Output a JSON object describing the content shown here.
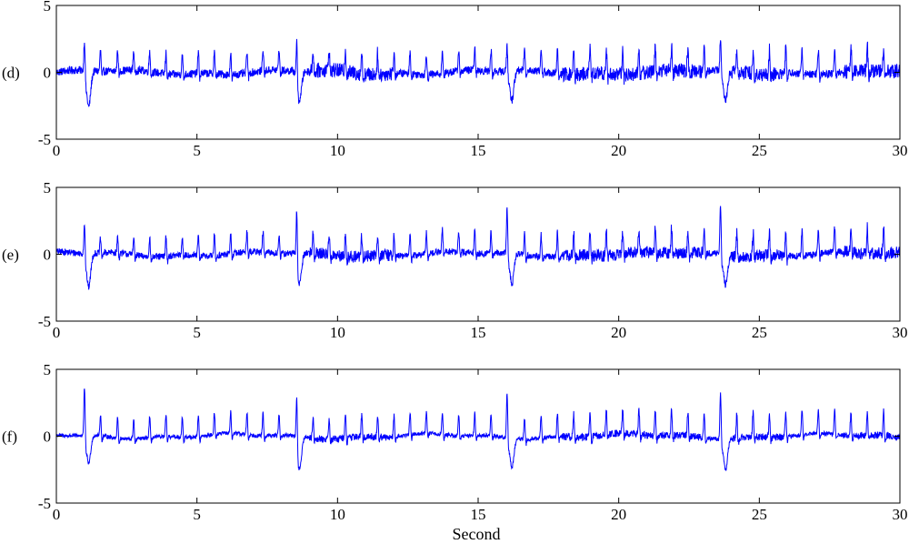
{
  "figure": {
    "xlabel": "Second",
    "line_color": "#0000ff"
  },
  "chart_data": [
    {
      "type": "line",
      "panel_label": "(d)",
      "xlim": [
        0,
        30
      ],
      "ylim": [
        -5,
        5
      ],
      "xticks": [
        0,
        5,
        10,
        15,
        20,
        25,
        30
      ],
      "yticks": [
        -5,
        0,
        5
      ],
      "xlabel": "",
      "beat_times": [
        1.0,
        1.57,
        2.18,
        2.75,
        3.32,
        3.9,
        4.48,
        5.05,
        5.62,
        6.2,
        6.78,
        7.35,
        7.92,
        8.55,
        9.13,
        9.7,
        10.28,
        10.86,
        11.43,
        12.01,
        12.58,
        13.16,
        13.73,
        14.31,
        14.88,
        15.46,
        16.03,
        16.65,
        17.24,
        17.82,
        18.4,
        18.98,
        19.56,
        20.14,
        20.72,
        21.3,
        21.88,
        22.46,
        23.04,
        23.62,
        24.2,
        24.78,
        25.36,
        25.94,
        26.52,
        27.1,
        27.68,
        28.26,
        28.84,
        29.42
      ],
      "spike_heights": [
        2.5,
        1.6,
        1.6,
        1.5,
        1.6,
        1.6,
        1.5,
        1.6,
        1.7,
        1.6,
        1.7,
        1.7,
        1.6,
        2.9,
        1.6,
        1.6,
        1.7,
        1.6,
        1.7,
        1.6,
        1.7,
        1.6,
        1.7,
        1.6,
        1.7,
        1.6,
        2.0,
        1.6,
        1.7,
        1.8,
        1.7,
        1.9,
        1.8,
        1.8,
        1.9,
        1.8,
        1.9,
        1.8,
        1.9,
        2.5,
        1.8,
        1.9,
        1.8,
        1.9,
        1.9,
        1.8,
        1.9,
        1.9,
        1.9,
        1.8
      ],
      "artifact_events": [
        {
          "t": 1.15,
          "depth": -2.7
        },
        {
          "t": 8.65,
          "depth": -2.1
        },
        {
          "t": 16.2,
          "depth": -2.2
        },
        {
          "t": 23.8,
          "depth": -2.3
        }
      ],
      "noise_level": 0.3
    },
    {
      "type": "line",
      "panel_label": "(e)",
      "xlim": [
        0,
        30
      ],
      "ylim": [
        -5,
        5
      ],
      "xticks": [
        0,
        5,
        10,
        15,
        20,
        25,
        30
      ],
      "yticks": [
        -5,
        0,
        5
      ],
      "xlabel": "",
      "beat_times": [
        1.0,
        1.57,
        2.18,
        2.75,
        3.32,
        3.9,
        4.48,
        5.05,
        5.62,
        6.2,
        6.78,
        7.35,
        7.92,
        8.55,
        9.13,
        9.7,
        10.28,
        10.86,
        11.43,
        12.01,
        12.58,
        13.16,
        13.73,
        14.31,
        14.88,
        15.46,
        16.03,
        16.65,
        17.24,
        17.82,
        18.4,
        18.98,
        19.56,
        20.14,
        20.72,
        21.3,
        21.88,
        22.46,
        23.04,
        23.62,
        24.2,
        24.78,
        25.36,
        25.94,
        26.52,
        27.1,
        27.68,
        28.26,
        28.84,
        29.42
      ],
      "spike_heights": [
        2.5,
        1.1,
        1.2,
        1.4,
        1.5,
        1.5,
        1.4,
        1.5,
        1.6,
        1.5,
        1.6,
        1.6,
        1.5,
        3.9,
        1.6,
        1.6,
        1.7,
        1.6,
        1.7,
        1.6,
        1.7,
        1.6,
        1.7,
        1.6,
        1.7,
        1.6,
        3.5,
        1.6,
        1.7,
        1.8,
        1.7,
        1.9,
        1.8,
        1.8,
        1.9,
        1.8,
        1.9,
        1.8,
        1.9,
        3.8,
        1.8,
        1.9,
        1.8,
        1.9,
        1.9,
        1.8,
        1.9,
        1.9,
        1.9,
        1.8
      ],
      "artifact_events": [
        {
          "t": 1.15,
          "depth": -2.5
        },
        {
          "t": 8.65,
          "depth": -2.2
        },
        {
          "t": 16.2,
          "depth": -2.3
        },
        {
          "t": 23.8,
          "depth": -2.2
        }
      ],
      "noise_level": 0.25
    },
    {
      "type": "line",
      "panel_label": "(f)",
      "xlim": [
        0,
        30
      ],
      "ylim": [
        -5,
        5
      ],
      "xticks": [
        0,
        5,
        10,
        15,
        20,
        25,
        30
      ],
      "yticks": [
        -5,
        0,
        5
      ],
      "xlabel": "Second",
      "beat_times": [
        1.0,
        1.57,
        2.18,
        2.75,
        3.32,
        3.9,
        4.48,
        5.05,
        5.62,
        6.2,
        6.78,
        7.35,
        7.92,
        8.55,
        9.13,
        9.7,
        10.28,
        10.86,
        11.43,
        12.01,
        12.58,
        13.16,
        13.73,
        14.31,
        14.88,
        15.46,
        16.03,
        16.65,
        17.24,
        17.82,
        18.4,
        18.98,
        19.56,
        20.14,
        20.72,
        21.3,
        21.88,
        22.46,
        23.04,
        23.62,
        24.2,
        24.78,
        25.36,
        25.94,
        26.52,
        27.1,
        27.68,
        28.26,
        28.84,
        29.42
      ],
      "spike_heights": [
        3.8,
        1.6,
        1.6,
        1.5,
        1.6,
        1.6,
        1.5,
        1.6,
        1.7,
        1.6,
        1.7,
        1.7,
        1.6,
        3.7,
        1.6,
        1.6,
        1.7,
        1.6,
        1.7,
        1.6,
        1.7,
        1.6,
        1.7,
        1.6,
        1.7,
        1.6,
        3.5,
        1.6,
        1.7,
        1.8,
        1.7,
        1.9,
        1.8,
        1.8,
        1.9,
        1.8,
        1.9,
        1.8,
        1.9,
        3.6,
        1.8,
        1.9,
        1.8,
        1.9,
        1.9,
        1.8,
        1.9,
        1.9,
        1.9,
        1.8
      ],
      "artifact_events": [
        {
          "t": 1.15,
          "depth": -2.1
        },
        {
          "t": 8.65,
          "depth": -2.4
        },
        {
          "t": 16.2,
          "depth": -2.2
        },
        {
          "t": 23.8,
          "depth": -2.3
        }
      ],
      "noise_level": 0.15
    }
  ]
}
